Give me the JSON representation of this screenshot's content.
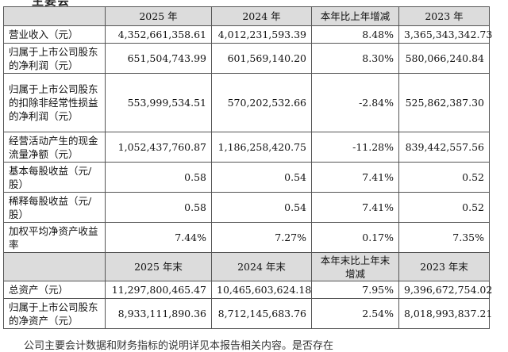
{
  "top_fragment": "主要会",
  "header1": {
    "col1": "2025 年",
    "col2": "2024 年",
    "col3": "本年比上年增减",
    "col4": "2023 年"
  },
  "rows1": [
    {
      "label": "营业收入（元）",
      "v2025": "4,352,661,358.61",
      "v2024": "4,012,231,593.39",
      "change": "8.48%",
      "v2023": "3,365,343,342.73"
    },
    {
      "label": "归属于上市公司股东的净利润（元）",
      "v2025": "651,504,743.99",
      "v2024": "601,569,140.20",
      "change": "8.30%",
      "v2023": "580,066,240.84"
    },
    {
      "label": "归属于上市公司股东的扣除非经常性损益的净利润（元）",
      "v2025": "553,999,534.51",
      "v2024": "570,202,532.66",
      "change": "-2.84%",
      "v2023": "525,862,387.30"
    },
    {
      "label": "经营活动产生的现金流量净额（元）",
      "v2025": "1,052,437,760.87",
      "v2024": "1,186,258,420.75",
      "change": "-11.28%",
      "v2023": "839,442,557.56"
    },
    {
      "label": "基本每股收益（元/股）",
      "v2025": "0.58",
      "v2024": "0.54",
      "change": "7.41%",
      "v2023": "0.52"
    },
    {
      "label": "稀释每股收益（元/股）",
      "v2025": "0.58",
      "v2024": "0.54",
      "change": "7.41%",
      "v2023": "0.52"
    },
    {
      "label": "加权平均净资产收益率",
      "v2025": "7.44%",
      "v2024": "7.27%",
      "change": "0.17%",
      "v2023": "7.35%"
    }
  ],
  "header2": {
    "col1": "2025 年末",
    "col2": "2024 年末",
    "col3": "本年末比上年末增减",
    "col4": "2023 年末"
  },
  "rows2": [
    {
      "label": "总资产（元）",
      "v2025": "11,297,800,465.47",
      "v2024": "10,465,603,624.18",
      "change": "7.95%",
      "v2023": "9,396,672,754.02"
    },
    {
      "label": "归属于上市公司股东的净资产（元）",
      "v2025": "8,933,111,890.36",
      "v2024": "8,712,145,683.76",
      "change": "2.54%",
      "v2023": "8,018,993,837.21"
    }
  ],
  "bottom_fragment": "公司主要会计数据和财务指标的说明详见本报告相关内容。是否存在"
}
